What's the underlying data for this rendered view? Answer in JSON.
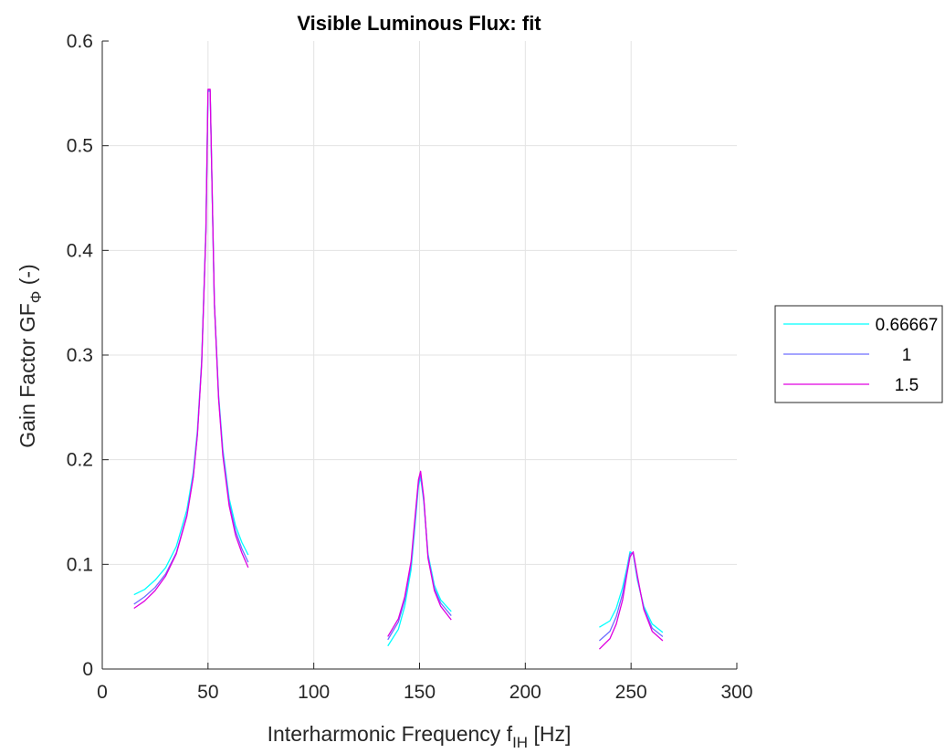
{
  "chart_data": {
    "type": "line",
    "title": "Visible Luminous Flux: fit",
    "xlabel": {
      "main": "Interharmonic Frequency f",
      "sub": "IH",
      "tail": " [Hz]"
    },
    "ylabel": {
      "main": "Gain Factor GF",
      "sub": "Φ",
      "tail": " (-)"
    },
    "xlim": [
      0,
      300
    ],
    "ylim": [
      0,
      0.6
    ],
    "xticks": [
      0,
      50,
      100,
      150,
      200,
      250,
      300
    ],
    "xtick_labels": [
      "0",
      "50",
      "100",
      "150",
      "200",
      "250",
      "300"
    ],
    "yticks": [
      0,
      0.1,
      0.2,
      0.3,
      0.4,
      0.5,
      0.6
    ],
    "ytick_labels": [
      "0",
      "0.1",
      "0.2",
      "0.3",
      "0.4",
      "0.5",
      "0.6"
    ],
    "grid": true,
    "legend_position": "outside-right",
    "series": [
      {
        "name": "0.66667",
        "color": "#00FFFF",
        "segments": [
          [
            [
              15,
              0.071
            ],
            [
              20,
              0.076
            ],
            [
              25,
              0.085
            ],
            [
              30,
              0.097
            ],
            [
              35,
              0.117
            ],
            [
              40,
              0.152
            ],
            [
              43,
              0.188
            ],
            [
              45,
              0.228
            ],
            [
              47,
              0.295
            ],
            [
              49,
              0.42
            ],
            [
              50,
              0.552
            ],
            [
              51,
              0.552
            ],
            [
              53,
              0.35
            ],
            [
              55,
              0.262
            ],
            [
              57,
              0.21
            ],
            [
              60,
              0.163
            ],
            [
              63,
              0.137
            ],
            [
              66,
              0.121
            ],
            [
              69,
              0.109
            ]
          ],
          [
            [
              135,
              0.022
            ],
            [
              140,
              0.038
            ],
            [
              143,
              0.06
            ],
            [
              146,
              0.095
            ],
            [
              148,
              0.14
            ],
            [
              149.5,
              0.175
            ],
            [
              150.5,
              0.183
            ],
            [
              152,
              0.16
            ],
            [
              154,
              0.11
            ],
            [
              157,
              0.08
            ],
            [
              160,
              0.066
            ],
            [
              165,
              0.055
            ]
          ],
          [
            [
              235,
              0.04
            ],
            [
              240,
              0.046
            ],
            [
              243,
              0.058
            ],
            [
              246,
              0.078
            ],
            [
              248,
              0.096
            ],
            [
              249.5,
              0.112
            ],
            [
              251,
              0.11
            ],
            [
              253,
              0.085
            ],
            [
              256,
              0.06
            ],
            [
              260,
              0.043
            ],
            [
              265,
              0.035
            ]
          ]
        ]
      },
      {
        "name": "1",
        "color": "#6E6EFF",
        "segments": [
          [
            [
              15,
              0.062
            ],
            [
              20,
              0.069
            ],
            [
              25,
              0.078
            ],
            [
              30,
              0.091
            ],
            [
              35,
              0.111
            ],
            [
              40,
              0.147
            ],
            [
              43,
              0.184
            ],
            [
              45,
              0.225
            ],
            [
              47,
              0.292
            ],
            [
              49,
              0.418
            ],
            [
              50,
              0.553
            ],
            [
              51,
              0.553
            ],
            [
              53,
              0.35
            ],
            [
              55,
              0.26
            ],
            [
              57,
              0.207
            ],
            [
              60,
              0.159
            ],
            [
              63,
              0.132
            ],
            [
              66,
              0.115
            ],
            [
              69,
              0.102
            ]
          ],
          [
            [
              135,
              0.028
            ],
            [
              140,
              0.045
            ],
            [
              143,
              0.066
            ],
            [
              146,
              0.1
            ],
            [
              148,
              0.145
            ],
            [
              149.5,
              0.178
            ],
            [
              150.5,
              0.186
            ],
            [
              152,
              0.162
            ],
            [
              154,
              0.108
            ],
            [
              157,
              0.077
            ],
            [
              160,
              0.063
            ],
            [
              165,
              0.051
            ]
          ],
          [
            [
              235,
              0.027
            ],
            [
              240,
              0.036
            ],
            [
              243,
              0.05
            ],
            [
              246,
              0.072
            ],
            [
              248,
              0.093
            ],
            [
              249.5,
              0.11
            ],
            [
              251,
              0.111
            ],
            [
              253,
              0.087
            ],
            [
              256,
              0.058
            ],
            [
              260,
              0.039
            ],
            [
              265,
              0.031
            ]
          ]
        ]
      },
      {
        "name": "1.5",
        "color": "#E000E0",
        "segments": [
          [
            [
              15,
              0.058
            ],
            [
              20,
              0.065
            ],
            [
              25,
              0.075
            ],
            [
              30,
              0.089
            ],
            [
              35,
              0.11
            ],
            [
              40,
              0.146
            ],
            [
              43,
              0.183
            ],
            [
              45,
              0.224
            ],
            [
              47,
              0.292
            ],
            [
              49,
              0.418
            ],
            [
              50,
              0.554
            ],
            [
              51,
              0.554
            ],
            [
              53,
              0.35
            ],
            [
              55,
              0.258
            ],
            [
              57,
              0.204
            ],
            [
              60,
              0.156
            ],
            [
              63,
              0.128
            ],
            [
              66,
              0.111
            ],
            [
              69,
              0.097
            ]
          ],
          [
            [
              135,
              0.031
            ],
            [
              140,
              0.048
            ],
            [
              143,
              0.069
            ],
            [
              146,
              0.103
            ],
            [
              148,
              0.148
            ],
            [
              149.5,
              0.181
            ],
            [
              150.5,
              0.189
            ],
            [
              152,
              0.164
            ],
            [
              154,
              0.106
            ],
            [
              157,
              0.075
            ],
            [
              160,
              0.06
            ],
            [
              165,
              0.047
            ]
          ],
          [
            [
              235,
              0.019
            ],
            [
              240,
              0.029
            ],
            [
              243,
              0.043
            ],
            [
              246,
              0.066
            ],
            [
              248,
              0.09
            ],
            [
              249.5,
              0.107
            ],
            [
              251,
              0.112
            ],
            [
              253,
              0.089
            ],
            [
              256,
              0.057
            ],
            [
              260,
              0.036
            ],
            [
              265,
              0.027
            ]
          ]
        ]
      }
    ]
  }
}
